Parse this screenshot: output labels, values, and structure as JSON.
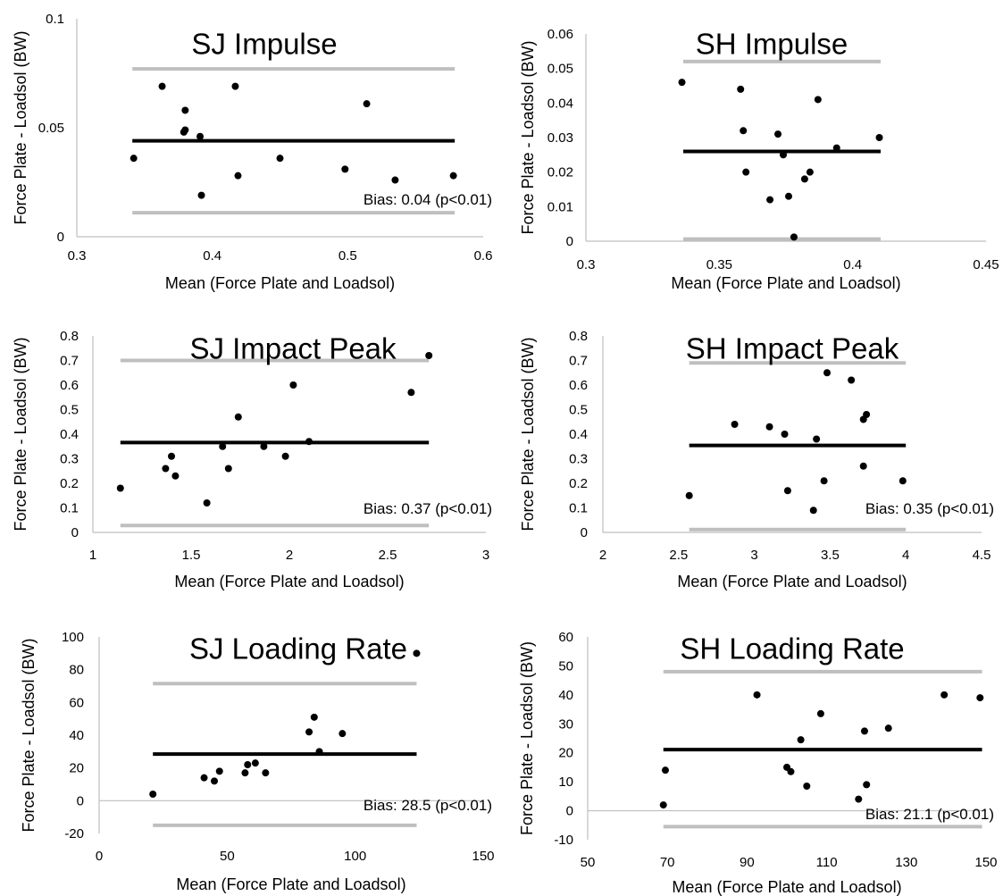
{
  "chart_data": [
    {
      "type": "scatter",
      "title": "SJ Impulse",
      "xlabel": "Mean (Force Plate and Loadsol)",
      "ylabel": "Force Plate - Loadsol (BW)",
      "xlim": [
        0.3,
        0.6
      ],
      "ylim": [
        0,
        0.1
      ],
      "xticks": [
        0.3,
        0.4,
        0.5,
        0.6
      ],
      "xtick_labels": [
        "0.3",
        "0.4",
        "0.5",
        "0.6"
      ],
      "yticks": [
        0,
        0.05,
        0.1
      ],
      "ytick_labels": [
        "0",
        "0.05",
        "0.1"
      ],
      "bias": 0.044,
      "upper_loa": 0.077,
      "lower_loa": 0.011,
      "line_x": [
        0.341,
        0.579
      ],
      "points": [
        [
          0.342,
          0.036
        ],
        [
          0.363,
          0.069
        ],
        [
          0.379,
          0.048
        ],
        [
          0.38,
          0.049
        ],
        [
          0.38,
          0.058
        ],
        [
          0.391,
          0.046
        ],
        [
          0.392,
          0.019
        ],
        [
          0.417,
          0.069
        ],
        [
          0.419,
          0.028
        ],
        [
          0.45,
          0.036
        ],
        [
          0.498,
          0.031
        ],
        [
          0.514,
          0.061
        ],
        [
          0.535,
          0.026
        ],
        [
          0.578,
          0.028
        ]
      ],
      "annotation": "Bias: 0.04 (p<0.01)",
      "grid": false,
      "legend": "none"
    },
    {
      "type": "scatter",
      "title": "SH Impulse",
      "xlabel": "Mean (Force Plate and Loadsol)",
      "ylabel": "Force Plate - Loadsol (BW)",
      "xlim": [
        0.3,
        0.45
      ],
      "ylim": [
        0,
        0.06
      ],
      "xticks": [
        0.3,
        0.35,
        0.4,
        0.45
      ],
      "xtick_labels": [
        "0.3",
        "0.35",
        "0.4",
        "0.45"
      ],
      "yticks": [
        0,
        0.01,
        0.02,
        0.03,
        0.04,
        0.05,
        0.06
      ],
      "ytick_labels": [
        "0",
        "0.01",
        "0.02",
        "0.03",
        "0.04",
        "0.05",
        "0.06"
      ],
      "bias": 0.026,
      "upper_loa": 0.052,
      "lower_loa": 0.0006,
      "line_x": [
        0.3365,
        0.4105
      ],
      "points": [
        [
          0.336,
          0.046
        ],
        [
          0.358,
          0.044
        ],
        [
          0.359,
          0.032
        ],
        [
          0.36,
          0.02
        ],
        [
          0.369,
          0.012
        ],
        [
          0.372,
          0.031
        ],
        [
          0.374,
          0.025
        ],
        [
          0.376,
          0.013
        ],
        [
          0.378,
          0.0012
        ],
        [
          0.382,
          0.018
        ],
        [
          0.384,
          0.02
        ],
        [
          0.387,
          0.041
        ],
        [
          0.394,
          0.027
        ],
        [
          0.41,
          0.03
        ]
      ],
      "annotation": "",
      "grid": false,
      "legend": "none"
    },
    {
      "type": "scatter",
      "title": "SJ Impact Peak",
      "xlabel": "Mean (Force Plate and Loadsol)",
      "ylabel": "Force Plate - Loadsol (BW)",
      "xlim": [
        1,
        3
      ],
      "ylim": [
        0,
        0.8
      ],
      "xticks": [
        1,
        1.5,
        2,
        2.5,
        3
      ],
      "xtick_labels": [
        "1",
        "1.5",
        "2",
        "2.5",
        "3"
      ],
      "yticks": [
        0,
        0.1,
        0.2,
        0.3,
        0.4,
        0.5,
        0.6,
        0.7,
        0.8
      ],
      "ytick_labels": [
        "0",
        "0.1",
        "0.2",
        "0.3",
        "0.4",
        "0.5",
        "0.6",
        "0.7",
        "0.8"
      ],
      "bias": 0.366,
      "upper_loa": 0.7,
      "lower_loa": 0.028,
      "line_x": [
        1.14,
        2.71
      ],
      "points": [
        [
          1.14,
          0.18
        ],
        [
          1.37,
          0.26
        ],
        [
          1.4,
          0.31
        ],
        [
          1.42,
          0.23
        ],
        [
          1.58,
          0.12
        ],
        [
          1.66,
          0.35
        ],
        [
          1.69,
          0.26
        ],
        [
          1.74,
          0.47
        ],
        [
          1.87,
          0.35
        ],
        [
          1.98,
          0.31
        ],
        [
          2.02,
          0.6
        ],
        [
          2.1,
          0.37
        ],
        [
          2.62,
          0.57
        ],
        [
          2.71,
          0.72
        ]
      ],
      "annotation": "Bias: 0.37 (p<0.01)",
      "grid": false,
      "legend": "none"
    },
    {
      "type": "scatter",
      "title": "SH Impact Peak",
      "xlabel": "Mean (Force Plate and Loadsol)",
      "ylabel": "Force Plate - Loadsol (BW)",
      "xlim": [
        2,
        4.5
      ],
      "ylim": [
        0,
        0.8
      ],
      "xticks": [
        2,
        2.5,
        3,
        3.5,
        4,
        4.5
      ],
      "xtick_labels": [
        "2",
        "2.5",
        "3",
        "3.5",
        "4",
        "4.5"
      ],
      "yticks": [
        0,
        0.1,
        0.2,
        0.3,
        0.4,
        0.5,
        0.6,
        0.7,
        0.8
      ],
      "ytick_labels": [
        "0",
        "0.1",
        "0.2",
        "0.3",
        "0.4",
        "0.5",
        "0.6",
        "0.7",
        "0.8"
      ],
      "bias": 0.354,
      "upper_loa": 0.69,
      "lower_loa": 0.012,
      "line_x": [
        2.57,
        4.0
      ],
      "points": [
        [
          2.57,
          0.15
        ],
        [
          2.87,
          0.44
        ],
        [
          3.1,
          0.43
        ],
        [
          3.2,
          0.4
        ],
        [
          3.22,
          0.17
        ],
        [
          3.39,
          0.09
        ],
        [
          3.41,
          0.38
        ],
        [
          3.46,
          0.21
        ],
        [
          3.48,
          0.65
        ],
        [
          3.64,
          0.62
        ],
        [
          3.72,
          0.27
        ],
        [
          3.72,
          0.46
        ],
        [
          3.74,
          0.48
        ],
        [
          3.98,
          0.21
        ]
      ],
      "annotation": "Bias: 0.35 (p<0.01)",
      "grid": false,
      "legend": "none"
    },
    {
      "type": "scatter",
      "title": "SJ Loading Rate",
      "xlabel": "Mean (Force Plate and Loadsol)",
      "ylabel": "Force Plate - Loadsol (BW)",
      "xlim": [
        0,
        150
      ],
      "ylim": [
        -20,
        100
      ],
      "xticks": [
        0,
        50,
        100,
        150
      ],
      "xtick_labels": [
        "0",
        "50",
        "100",
        "150"
      ],
      "yticks": [
        -20,
        0,
        20,
        40,
        60,
        80,
        100
      ],
      "ytick_labels": [
        "-20",
        "0",
        "20",
        "40",
        "60",
        "80",
        "100"
      ],
      "bias": 28.5,
      "upper_loa": 71.5,
      "lower_loa": -15,
      "line_x": [
        21,
        124
      ],
      "points": [
        [
          21,
          4
        ],
        [
          41,
          14
        ],
        [
          45,
          12
        ],
        [
          47,
          18
        ],
        [
          57,
          17
        ],
        [
          58,
          22
        ],
        [
          61,
          23
        ],
        [
          65,
          17
        ],
        [
          82,
          42
        ],
        [
          84,
          51
        ],
        [
          86,
          30
        ],
        [
          95,
          41
        ],
        [
          124,
          90
        ]
      ],
      "annotation": "Bias: 28.5 (p<0.01)",
      "grid": false,
      "legend": "none"
    },
    {
      "type": "scatter",
      "title": "SH Loading Rate",
      "xlabel": "Mean (Force Plate and Loadsol)",
      "ylabel": "Force Plate - Loadsol (BW)",
      "xlim": [
        50,
        150
      ],
      "ylim": [
        -10,
        60
      ],
      "xticks": [
        50,
        70,
        90,
        110,
        130,
        150
      ],
      "xtick_labels": [
        "50",
        "70",
        "90",
        "110",
        "130",
        "150"
      ],
      "yticks": [
        -10,
        0,
        10,
        20,
        30,
        40,
        50,
        60
      ],
      "ytick_labels": [
        "-10",
        "0",
        "10",
        "20",
        "30",
        "40",
        "50",
        "60"
      ],
      "bias": 21.1,
      "upper_loa": 48,
      "lower_loa": -5.5,
      "line_x": [
        69,
        149
      ],
      "points": [
        [
          69,
          2
        ],
        [
          69.5,
          14
        ],
        [
          92.5,
          40
        ],
        [
          100,
          15
        ],
        [
          101,
          13.5
        ],
        [
          103.5,
          24.5
        ],
        [
          105,
          8.5
        ],
        [
          108.5,
          33.5
        ],
        [
          118,
          4
        ],
        [
          119.5,
          27.5
        ],
        [
          120,
          9
        ],
        [
          125.5,
          28.5
        ],
        [
          139.5,
          40
        ],
        [
          148.5,
          39
        ]
      ],
      "annotation": "Bias: 21.1 (p<0.01)",
      "grid": false,
      "legend": "none"
    }
  ]
}
